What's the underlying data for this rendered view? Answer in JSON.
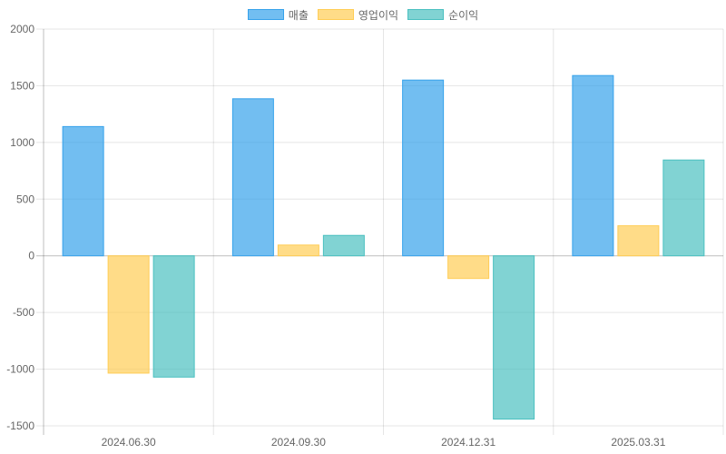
{
  "chart_data": {
    "type": "bar",
    "categories": [
      "2024.06.30",
      "2024.09.30",
      "2024.12.31",
      "2025.03.31"
    ],
    "series": [
      {
        "name": "매출",
        "values": [
          1140,
          1385,
          1550,
          1590
        ],
        "color": "#36a2eb"
      },
      {
        "name": "영업이익",
        "values": [
          -1035,
          95,
          -200,
          265
        ],
        "color": "#ffcd56"
      },
      {
        "name": "순이익",
        "values": [
          -1070,
          180,
          -1440,
          845
        ],
        "color": "#4bc0c0"
      }
    ],
    "ylim": [
      -1500,
      2000
    ],
    "yticks": [
      2000,
      1500,
      1000,
      500,
      0,
      -500,
      -1000,
      -1500
    ],
    "grid": true,
    "legend_position": "top"
  }
}
